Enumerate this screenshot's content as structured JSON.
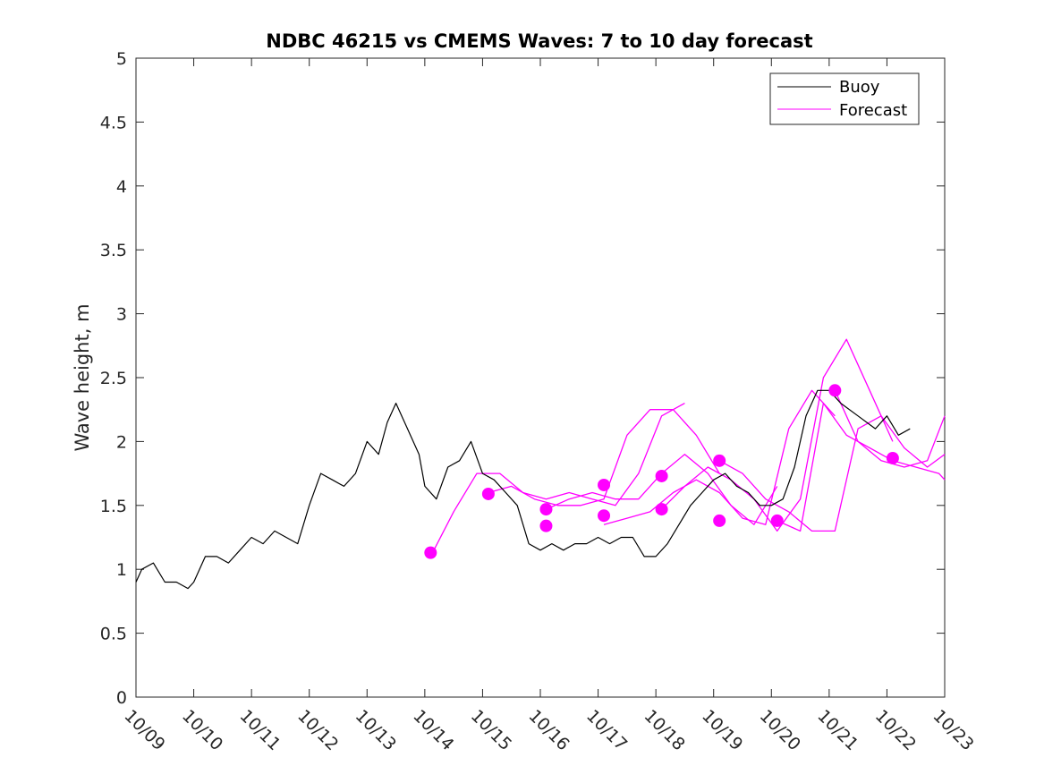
{
  "chart_data": {
    "type": "line",
    "title": "NDBC 46215 vs CMEMS Waves: 7 to 10 day forecast",
    "xlabel": "",
    "ylabel": "Wave height, m",
    "xlim": [
      0,
      14
    ],
    "ylim": [
      0,
      5
    ],
    "x_tick_labels": [
      "10/09",
      "10/10",
      "10/11",
      "10/12",
      "10/13",
      "10/14",
      "10/15",
      "10/16",
      "10/17",
      "10/18",
      "10/19",
      "10/20",
      "10/21",
      "10/22",
      "10/23"
    ],
    "y_ticks": [
      0,
      0.5,
      1,
      1.5,
      2,
      2.5,
      3,
      3.5,
      4,
      4.5,
      5
    ],
    "y_tick_labels": [
      "0",
      "0.5",
      "1",
      "1.5",
      "2",
      "2.5",
      "3",
      "3.5",
      "4",
      "4.5",
      "5"
    ],
    "legend": {
      "location": "top-right",
      "entries": [
        {
          "label": "Buoy",
          "color": "#000000"
        },
        {
          "label": "Forecast",
          "color": "#ff00ff"
        }
      ]
    },
    "colors": {
      "buoy": "#000000",
      "forecast": "#ff00ff",
      "axis": "#262626"
    },
    "buoy": {
      "name": "Buoy",
      "x": [
        0,
        0.1,
        0.3,
        0.5,
        0.7,
        0.9,
        1.0,
        1.2,
        1.4,
        1.6,
        1.8,
        2.0,
        2.2,
        2.4,
        2.6,
        2.8,
        3.0,
        3.2,
        3.4,
        3.6,
        3.8,
        4.0,
        4.2,
        4.35,
        4.5,
        4.7,
        4.9,
        5.0,
        5.2,
        5.4,
        5.6,
        5.8,
        6.0,
        6.2,
        6.4,
        6.6,
        6.8,
        7.0,
        7.2,
        7.4,
        7.6,
        7.8,
        8.0,
        8.2,
        8.4,
        8.6,
        8.8,
        9.0,
        9.2,
        9.4,
        9.6,
        9.8,
        10.0,
        10.2,
        10.4,
        10.6,
        10.8,
        11.0,
        11.2,
        11.4,
        11.6,
        11.8,
        12.0,
        12.2,
        12.5,
        12.8,
        13.0,
        13.2,
        13.4
      ],
      "values": [
        0.9,
        1.0,
        1.05,
        0.9,
        0.9,
        0.85,
        0.9,
        1.1,
        1.1,
        1.05,
        1.15,
        1.25,
        1.2,
        1.3,
        1.25,
        1.2,
        1.5,
        1.75,
        1.7,
        1.65,
        1.75,
        2.0,
        1.9,
        2.15,
        2.3,
        2.1,
        1.9,
        1.65,
        1.55,
        1.8,
        1.85,
        2.0,
        1.75,
        1.7,
        1.6,
        1.5,
        1.2,
        1.15,
        1.2,
        1.15,
        1.2,
        1.2,
        1.25,
        1.2,
        1.25,
        1.25,
        1.1,
        1.1,
        1.2,
        1.35,
        1.5,
        1.6,
        1.7,
        1.75,
        1.65,
        1.6,
        1.5,
        1.5,
        1.55,
        1.8,
        2.2,
        2.4,
        2.4,
        2.3,
        2.2,
        2.1,
        2.2,
        2.05,
        2.1
      ]
    },
    "forecast_series": [
      {
        "name": "Forecast",
        "x": [
          5.1,
          5.5,
          5.9,
          6.3,
          6.7,
          7.1,
          7.5,
          7.9,
          8.3,
          8.7,
          9.1,
          9.5
        ],
        "values": [
          1.1,
          1.45,
          1.75,
          1.75,
          1.6,
          1.55,
          1.6,
          1.55,
          1.5,
          1.75,
          2.2,
          2.3
        ]
      },
      {
        "name": "Forecast",
        "x": [
          6.1,
          6.5,
          6.9,
          7.3,
          7.7,
          8.1,
          8.5,
          8.9,
          9.3,
          9.7,
          10.1
        ],
        "values": [
          1.6,
          1.65,
          1.55,
          1.5,
          1.5,
          1.55,
          2.05,
          2.25,
          2.25,
          2.05,
          1.75
        ]
      },
      {
        "name": "Forecast",
        "x": [
          7.1,
          7.5,
          7.9,
          8.3,
          8.7,
          9.1,
          9.5,
          9.9,
          10.3,
          10.7,
          11.1
        ],
        "values": [
          1.47,
          1.55,
          1.6,
          1.55,
          1.55,
          1.75,
          1.9,
          1.75,
          1.5,
          1.35,
          1.65
        ]
      },
      {
        "name": "Forecast",
        "x": [
          8.1,
          8.5,
          8.9,
          9.3,
          9.7,
          10.1,
          10.5,
          10.9,
          11.3,
          11.7,
          12.1
        ],
        "values": [
          1.35,
          1.4,
          1.45,
          1.6,
          1.7,
          1.6,
          1.4,
          1.35,
          2.1,
          2.4,
          2.2
        ]
      },
      {
        "name": "Forecast",
        "x": [
          9.1,
          9.5,
          9.9,
          10.3,
          10.7,
          11.1,
          11.5,
          11.9,
          12.3,
          12.7,
          13.1
        ],
        "values": [
          1.47,
          1.65,
          1.8,
          1.7,
          1.55,
          1.3,
          1.55,
          2.5,
          2.8,
          2.4,
          2.0
        ]
      },
      {
        "name": "Forecast",
        "x": [
          10.1,
          10.5,
          10.9,
          11.3,
          11.7,
          12.1,
          12.5,
          12.9,
          13.3,
          13.7,
          14.0
        ],
        "values": [
          1.85,
          1.75,
          1.55,
          1.45,
          1.3,
          1.3,
          2.1,
          2.2,
          1.95,
          1.8,
          1.9
        ]
      },
      {
        "name": "Forecast",
        "x": [
          11.1,
          11.5,
          11.9,
          12.3,
          12.7,
          13.1,
          13.5,
          13.9,
          14.0
        ],
        "values": [
          1.38,
          1.3,
          2.3,
          2.05,
          1.95,
          1.85,
          1.8,
          1.75,
          1.7
        ]
      },
      {
        "name": "Forecast",
        "x": [
          12.1,
          12.5,
          12.9,
          13.3,
          13.7,
          14.0
        ],
        "values": [
          2.4,
          2.0,
          1.85,
          1.8,
          1.85,
          2.2
        ]
      }
    ],
    "forecast_markers": {
      "x": [
        5.1,
        6.1,
        7.1,
        8.1,
        9.1,
        10.1,
        11.1,
        12.1,
        13.1,
        7.1,
        8.1,
        9.1,
        10.1
      ],
      "values": [
        1.13,
        1.59,
        1.47,
        1.66,
        1.47,
        1.85,
        1.38,
        2.4,
        1.87,
        1.34,
        1.42,
        1.73,
        1.38
      ]
    }
  }
}
